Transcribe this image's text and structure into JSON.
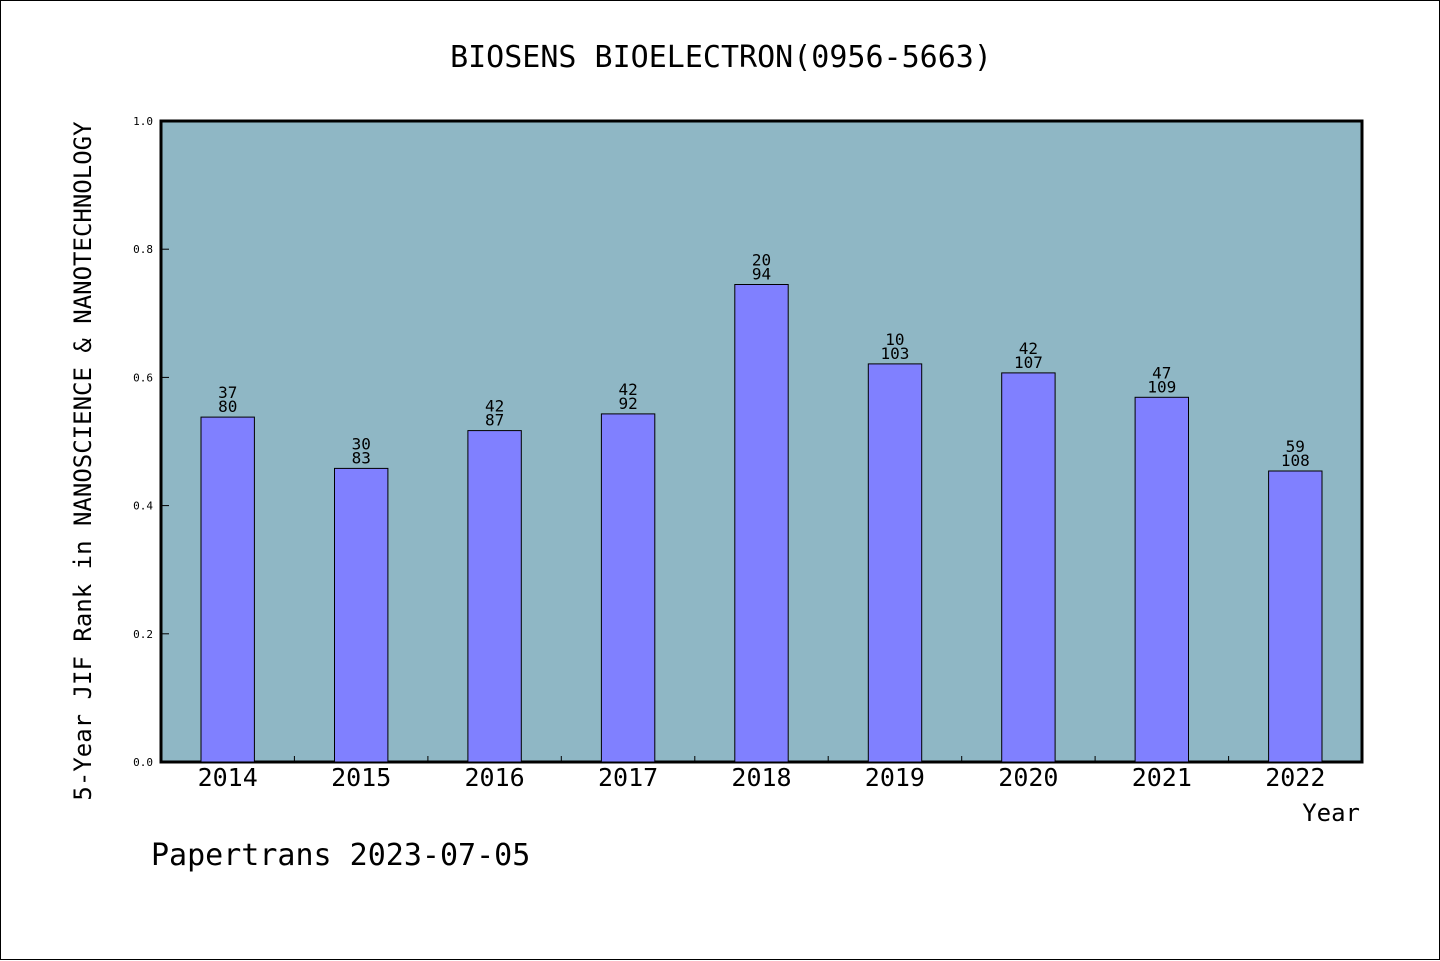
{
  "chart_data": {
    "type": "bar",
    "title": "BIOSENS BIOELECTRON(0956-5663)",
    "xlabel": "Year",
    "ylabel": "5-Year JIF Rank in NANOSCIENCE & NANOTECHNOLOGY",
    "categories": [
      "2014",
      "2015",
      "2016",
      "2017",
      "2018",
      "2019",
      "2020",
      "2021",
      "2022"
    ],
    "values": [
      0.538,
      0.458,
      0.517,
      0.543,
      0.745,
      0.621,
      0.607,
      0.569,
      0.454
    ],
    "rank": [
      "37",
      "30",
      "42",
      "42",
      "20",
      "10",
      "42",
      "47",
      "59"
    ],
    "total": [
      "80",
      "83",
      "87",
      "92",
      "94",
      "103",
      "107",
      "109",
      "108"
    ],
    "ylim": [
      0,
      1.0
    ],
    "yticks": [
      "0.0",
      "0.2",
      "0.4",
      "0.6",
      "0.8",
      "1.0"
    ],
    "grid": false,
    "colors": {
      "plot_bg": "#8fb7c5",
      "bar": "#8080ff",
      "bar_edge": "#000000"
    }
  },
  "footer": "Papertrans 2023-07-05"
}
